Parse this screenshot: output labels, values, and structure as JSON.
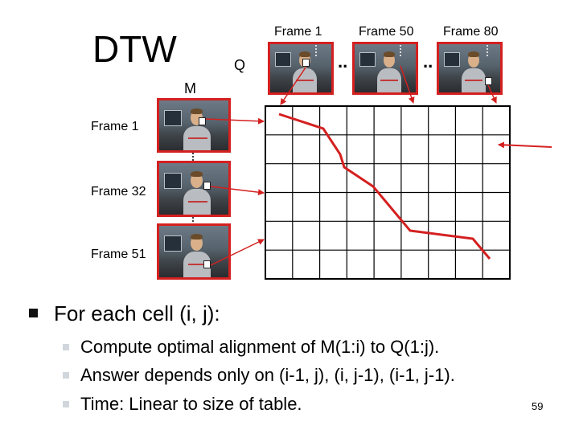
{
  "title": "DTW",
  "q_label": "Q",
  "m_label": "M",
  "top_frames": [
    "Frame 1",
    "Frame 50",
    "Frame 80"
  ],
  "left_frames": [
    "Frame 1",
    "Frame 32",
    "Frame 51"
  ],
  "ellipsis": "..",
  "bullet_main": "For each cell (i, j):",
  "sub_bullets": [
    "Compute optimal alignment of M(1:i) to Q(1:j).",
    "Answer depends only on (i-1, j), (i, j-1), (i-1, j-1).",
    "Time: Linear to size of table."
  ],
  "page_number": "59",
  "colors": {
    "accent": "#d42020",
    "grid": "#000000"
  }
}
